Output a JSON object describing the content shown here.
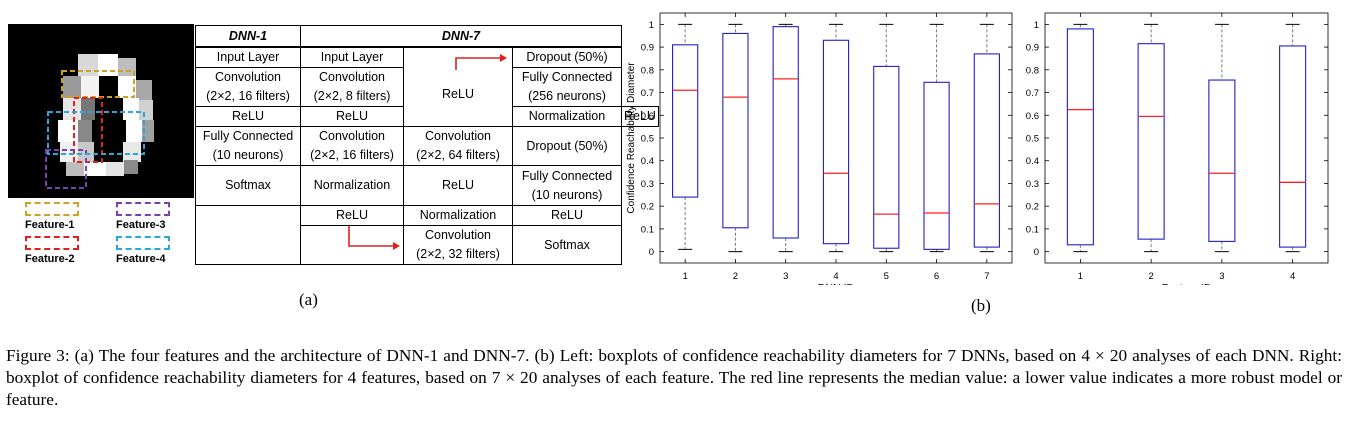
{
  "figure_a": {
    "sublabel": "(a)",
    "legend": {
      "feature1": {
        "label": "Feature-1",
        "color": "#c9a227"
      },
      "feature2": {
        "label": "Feature-2",
        "color": "#e02020"
      },
      "feature3": {
        "label": "Feature-3",
        "color": "#7a3fb0"
      },
      "feature4": {
        "label": "Feature-4",
        "color": "#2aa7d8"
      }
    },
    "table": {
      "header_dnn1": "DNN-1",
      "header_dnn7": "DNN-7",
      "dnn1": [
        "Input Layer",
        "Convolution",
        "(2×2, 16 filters)",
        "ReLU",
        "Fully Connected",
        "(10 neurons)",
        "Softmax"
      ],
      "dnn7_col1": [
        "Input Layer",
        "Convolution",
        "(2×2, 8 filters)",
        "ReLU",
        "Convolution",
        "(2×2, 16 filters)",
        "Normalization",
        "ReLU"
      ],
      "dnn7_col2": [
        "ReLU",
        "Normalization",
        "Convolution",
        "(2×2, 64 filters)",
        "ReLU",
        "Normalization",
        "Convolution",
        "(2×2, 32 filters)"
      ],
      "dnn7_col3": [
        "Dropout (50%)",
        "Fully Connected",
        "(256 neurons)",
        "ReLU",
        "Dropout (50%)",
        "Fully Connected",
        "(10 neurons)",
        "ReLU",
        "Softmax"
      ]
    }
  },
  "figure_b": {
    "sublabel": "(b)"
  },
  "chart_data": [
    {
      "type": "boxplot",
      "title": "",
      "xlabel": "DNN ID",
      "ylabel": "Confidence Reachability Diameter",
      "ylim": [
        -0.05,
        1.05
      ],
      "yticks": [
        "0",
        "0.1",
        "0.2",
        "0.3",
        "0.4",
        "0.5",
        "0.6",
        "0.7",
        "0.8",
        "0.9",
        "1"
      ],
      "categories": [
        "1",
        "2",
        "3",
        "4",
        "5",
        "6",
        "7"
      ],
      "boxes": [
        {
          "min": 0.01,
          "q1": 0.24,
          "median": 0.71,
          "q3": 0.91,
          "max": 1.0
        },
        {
          "min": 0.0,
          "q1": 0.105,
          "median": 0.68,
          "q3": 0.96,
          "max": 1.0
        },
        {
          "min": 0.0,
          "q1": 0.06,
          "median": 0.76,
          "q3": 0.99,
          "max": 1.0
        },
        {
          "min": 0.0,
          "q1": 0.035,
          "median": 0.345,
          "q3": 0.93,
          "max": 1.0
        },
        {
          "min": 0.0,
          "q1": 0.015,
          "median": 0.165,
          "q3": 0.815,
          "max": 1.0
        },
        {
          "min": 0.0,
          "q1": 0.01,
          "median": 0.17,
          "q3": 0.745,
          "max": 1.0
        },
        {
          "min": 0.0,
          "q1": 0.02,
          "median": 0.21,
          "q3": 0.87,
          "max": 1.0
        }
      ],
      "box_color": "#1f1fcf",
      "median_color": "#ff2020"
    },
    {
      "type": "boxplot",
      "title": "",
      "xlabel": "Feature ID",
      "ylabel": "",
      "ylim": [
        -0.05,
        1.05
      ],
      "yticks": [
        "0",
        "0.1",
        "0.2",
        "0.3",
        "0.4",
        "0.5",
        "0.6",
        "0.7",
        "0.8",
        "0.9",
        "1"
      ],
      "categories": [
        "1",
        "2",
        "3",
        "4"
      ],
      "boxes": [
        {
          "min": 0.0,
          "q1": 0.03,
          "median": 0.625,
          "q3": 0.98,
          "max": 1.0
        },
        {
          "min": 0.0,
          "q1": 0.055,
          "median": 0.595,
          "q3": 0.915,
          "max": 1.0
        },
        {
          "min": 0.0,
          "q1": 0.045,
          "median": 0.345,
          "q3": 0.755,
          "max": 1.0
        },
        {
          "min": 0.0,
          "q1": 0.02,
          "median": 0.305,
          "q3": 0.905,
          "max": 1.0
        }
      ],
      "box_color": "#1f1fcf",
      "median_color": "#ff2020"
    }
  ],
  "caption": {
    "text": "Figure 3: (a) The four features and the architecture of DNN-1 and DNN-7. (b) Left: boxplots of confidence reachability diameters for 7 DNNs, based on 4 × 20 analyses of each DNN. Right: boxplot of confidence reachability diameters for 4 features, based on 7 × 20 analyses of each feature. The red line represents the median value: a lower value indicates a more robust model or feature."
  }
}
